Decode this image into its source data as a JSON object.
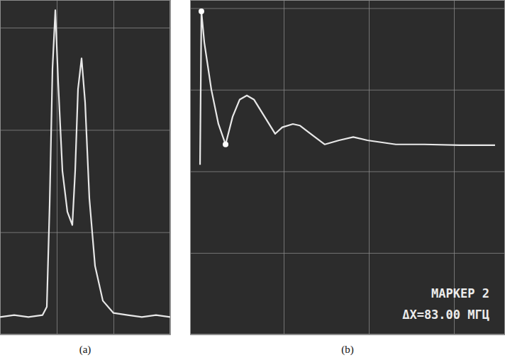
{
  "chart_data": [
    {
      "type": "line",
      "title": "(a)",
      "color": "#e8e8e8",
      "grid": true,
      "tick_labels": false,
      "xlim": [
        0,
        3
      ],
      "xticks": [
        1,
        2
      ],
      "ylim": [
        0,
        3.27
      ],
      "yticks": [
        1,
        2,
        3
      ],
      "x": [
        0,
        0.25,
        0.5,
        0.75,
        0.825,
        0.875,
        0.925,
        0.975,
        1.025,
        1.1,
        1.1875,
        1.275,
        1.325,
        1.375,
        1.4375,
        1.5,
        1.575,
        1.675,
        1.8125,
        2,
        2.25,
        2.5,
        2.75,
        3
      ],
      "values": [
        0.17,
        0.19,
        0.17,
        0.19,
        0.27,
        1.27,
        2.6,
        3.17,
        2.47,
        1.6,
        1.2,
        1.07,
        1.6,
        2.4,
        2.7,
        2.27,
        1.33,
        0.67,
        0.33,
        0.21,
        0.19,
        0.17,
        0.19,
        0.17
      ]
    },
    {
      "type": "line",
      "title": "(b)",
      "color": "#e8e8e8",
      "grid": true,
      "tick_labels": false,
      "xlim": [
        0,
        3.7
      ],
      "xticks": [
        1.1,
        2.1,
        3.1
      ],
      "ylim": [
        0,
        4.1
      ],
      "yticks": [
        1,
        2,
        3,
        4
      ],
      "x": [
        0.117,
        0.133,
        0.167,
        0.25,
        0.333,
        0.417,
        0.5,
        0.583,
        0.667,
        0.75,
        0.875,
        1,
        1.083,
        1.208,
        1.292,
        1.417,
        1.583,
        1.75,
        1.917,
        2.083,
        2.417,
        2.75,
        3.167,
        3.583
      ],
      "values": [
        2.08,
        3.96,
        3.58,
        3.0,
        2.58,
        2.33,
        2.67,
        2.88,
        2.93,
        2.88,
        2.67,
        2.46,
        2.54,
        2.58,
        2.56,
        2.46,
        2.33,
        2.38,
        2.42,
        2.38,
        2.33,
        2.33,
        2.32,
        2.32
      ],
      "annotations": [
        "МАРКЕР 2",
        "ΔX=83.00 МГЦ"
      ]
    }
  ]
}
